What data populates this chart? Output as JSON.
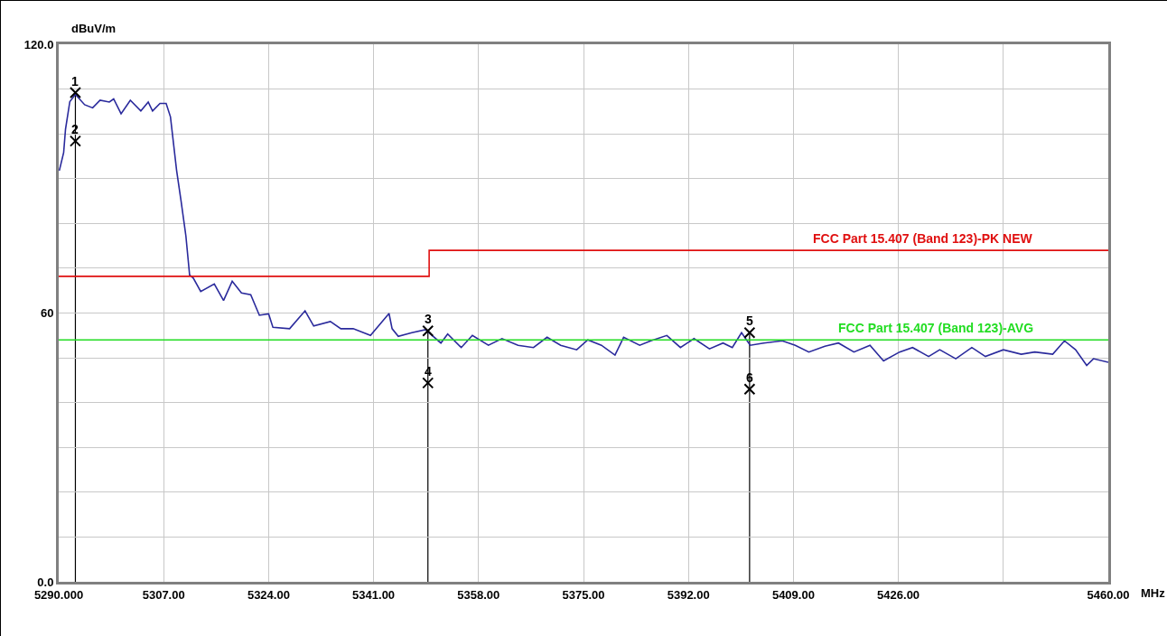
{
  "chart_data": {
    "type": "line",
    "xlabel": "MHz",
    "ylabel": "dBuV/m",
    "xlim": [
      5290,
      5460
    ],
    "ylim": [
      0,
      120
    ],
    "xticks": [
      {
        "value": 5290,
        "label": "5290.000"
      },
      {
        "value": 5307,
        "label": "5307.00"
      },
      {
        "value": 5324,
        "label": "5324.00"
      },
      {
        "value": 5341,
        "label": "5341.00"
      },
      {
        "value": 5358,
        "label": "5358.00"
      },
      {
        "value": 5375,
        "label": "5375.00"
      },
      {
        "value": 5392,
        "label": "5392.00"
      },
      {
        "value": 5409,
        "label": "5409.00"
      },
      {
        "value": 5426,
        "label": "5426.00"
      },
      {
        "value": 5443,
        "label": null
      },
      {
        "value": 5460,
        "label": "5460.00"
      }
    ],
    "yticks": [
      {
        "value": 0,
        "label": "0.0"
      },
      {
        "value": 10,
        "label": null
      },
      {
        "value": 20,
        "label": null
      },
      {
        "value": 30,
        "label": null
      },
      {
        "value": 40,
        "label": null
      },
      {
        "value": 50,
        "label": null
      },
      60,
      {
        "value": 70,
        "label": null
      },
      {
        "value": 80,
        "label": null
      },
      {
        "value": 90,
        "label": null
      },
      {
        "value": 100,
        "label": null
      },
      {
        "value": 110,
        "label": null
      },
      {
        "value": 120,
        "label": "120.0"
      }
    ],
    "grid": true,
    "legend": false,
    "series": [
      {
        "color": "#2a2a9c",
        "x": [
          5290.1,
          5290.8,
          5291.1,
          5291.8,
          5292.7,
          5294.2,
          5295.5,
          5296.7,
          5298.2,
          5298.9,
          5300.1,
          5301.6,
          5303.3,
          5304.5,
          5305.2,
          5306.4,
          5307.4,
          5308.1,
          5309.1,
          5309.8,
          5310.6,
          5311.2,
          5311.8,
          5313.0,
          5315.2,
          5316.7,
          5318.1,
          5319.6,
          5321.1,
          5322.5,
          5324.0,
          5324.7,
          5327.4,
          5329.9,
          5331.3,
          5334.0,
          5335.7,
          5337.7,
          5340.5,
          5343.5,
          5344.0,
          5345.0,
          5347.2,
          5349.4,
          5351.9,
          5353.0,
          5355.2,
          5357.0,
          5359.6,
          5361.8,
          5364.4,
          5366.9,
          5369.1,
          5371.3,
          5373.9,
          5375.7,
          5377.9,
          5380.1,
          5381.5,
          5384.1,
          5385.9,
          5388.5,
          5390.7,
          5392.9,
          5395.4,
          5397.6,
          5399.1,
          5400.6,
          5402.0,
          5404.2,
          5407.2,
          5409.3,
          5411.5,
          5414.1,
          5416.3,
          5418.8,
          5421.4,
          5423.6,
          5426.2,
          5428.3,
          5430.9,
          5432.7,
          5435.3,
          5437.9,
          5440.1,
          5443.0,
          5445.9,
          5448.1,
          5451.0,
          5452.9,
          5454.7,
          5456.5,
          5457.6,
          5460.0
        ],
        "values": [
          91.8,
          95.8,
          101.0,
          107.2,
          108.8,
          106.5,
          105.8,
          107.5,
          107.1,
          107.8,
          104.5,
          107.5,
          105.1,
          107.1,
          105.1,
          106.8,
          106.8,
          103.8,
          91.8,
          85.2,
          77.2,
          68.5,
          67.8,
          64.8,
          66.5,
          62.8,
          67.1,
          64.5,
          64.1,
          59.5,
          59.8,
          56.8,
          56.5,
          60.5,
          57.1,
          58.1,
          56.5,
          56.5,
          55.0,
          59.9,
          56.5,
          54.8,
          55.6,
          56.3,
          53.3,
          55.3,
          52.3,
          55.0,
          52.8,
          54.3,
          52.8,
          52.3,
          54.6,
          52.8,
          51.8,
          54.0,
          52.8,
          50.6,
          54.6,
          52.8,
          53.8,
          55.0,
          52.3,
          54.3,
          52.0,
          53.3,
          52.3,
          55.6,
          52.8,
          53.3,
          53.8,
          52.8,
          51.3,
          52.6,
          53.3,
          51.3,
          52.8,
          49.3,
          51.3,
          52.3,
          50.3,
          51.8,
          49.8,
          52.3,
          50.3,
          51.8,
          50.8,
          51.3,
          50.8,
          53.8,
          51.8,
          48.3,
          49.8,
          49.0
        ]
      },
      {
        "type": "step",
        "name": "FCC Part 15.407 (Band 123)-PK NEW",
        "color": "#e01010",
        "x": [
          5290,
          5350,
          5460
        ],
        "values": [
          68.2,
          74,
          74
        ]
      },
      {
        "type": "line",
        "name": "FCC Part 15.407 (Band 123)-AVG",
        "color": "#22dd22",
        "x": [
          5290,
          5460
        ],
        "values": [
          54,
          54
        ]
      },
      {
        "type": "scatter",
        "marker": "cross",
        "color": "#000000",
        "x": [
          5292.7,
          5292.7,
          5349.8,
          5349.8,
          5401.9,
          5401.9
        ],
        "values": [
          109.2,
          98.4,
          56.0,
          44.4,
          55.6,
          43.0
        ]
      }
    ],
    "ref_lines": [
      {
        "axis": "x",
        "value": 5292.7,
        "color": "#000000"
      },
      {
        "axis": "x",
        "value": 5349.8,
        "color": "#000000"
      },
      {
        "axis": "x",
        "value": 5401.9,
        "color": "#000000"
      }
    ],
    "annotations": [
      {
        "text": "1",
        "x": 5292.7,
        "y": 109.2
      },
      {
        "text": "2",
        "x": 5292.7,
        "y": 98.4
      },
      {
        "text": "3",
        "x": 5349.8,
        "y": 56.0
      },
      {
        "text": "4",
        "x": 5349.8,
        "y": 44.4
      },
      {
        "text": "5",
        "x": 5401.9,
        "y": 55.6
      },
      {
        "text": "6",
        "x": 5401.9,
        "y": 43.0
      }
    ]
  }
}
